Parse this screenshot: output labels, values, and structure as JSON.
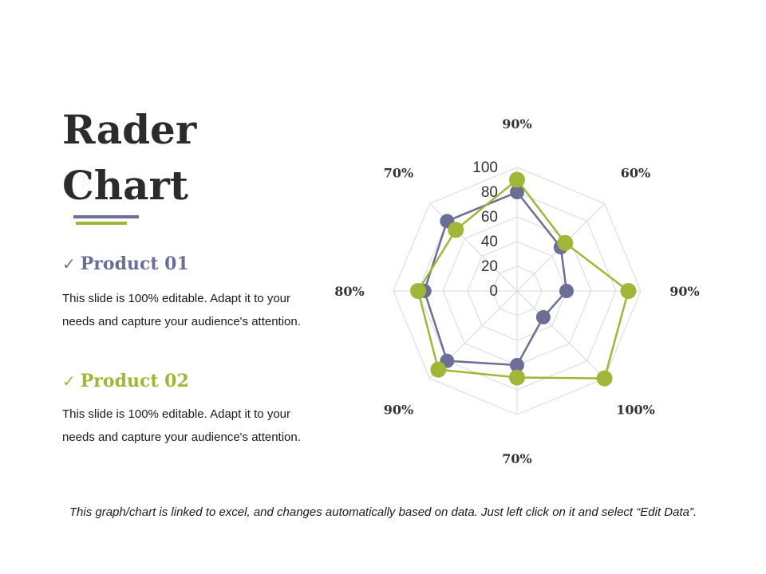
{
  "slide": {
    "title_line1": "Rader",
    "title_line2": "Chart",
    "footer": "This graph/chart is linked to excel, and changes automatically based on data. Just left click on it and select “Edit Data”."
  },
  "products": [
    {
      "check": "✓",
      "name": "Product 01",
      "description": "This slide is 100% editable. Adapt it to your needs and capture your audience's attention."
    },
    {
      "check": "✓",
      "name": "Product 02",
      "description": "This slide is 100% editable. Adapt it to your needs and capture your audience's attention."
    }
  ],
  "chart_data": {
    "type": "radar",
    "axes": [
      "90%",
      "60%",
      "90%",
      "100%",
      "70%",
      "90%",
      "80%",
      "70%"
    ],
    "r_ticks": [
      "0",
      "20",
      "40",
      "60",
      "80",
      "100"
    ],
    "rlim": [
      0,
      100
    ],
    "grid": true,
    "series": [
      {
        "color": "#6b6f96",
        "values": [
          80,
          50,
          40,
          30,
          60,
          80,
          75,
          80
        ]
      },
      {
        "color": "#9fb636",
        "values": [
          90,
          55,
          90,
          100,
          70,
          90,
          80,
          70
        ]
      }
    ]
  }
}
